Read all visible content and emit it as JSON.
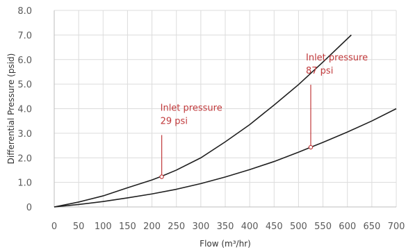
{
  "chart_data": {
    "type": "line",
    "title": "",
    "xlabel": "Flow (m³/hr)",
    "ylabel": "Differential Pressure (psid)",
    "xlim": [
      0,
      700
    ],
    "ylim": [
      0,
      8
    ],
    "x_ticks": [
      "0",
      "50",
      "100",
      "150",
      "200",
      "250",
      "300",
      "350",
      "400",
      "450",
      "500",
      "550",
      "600",
      "650",
      "700"
    ],
    "y_ticks": [
      "0",
      "1.0",
      "2.0",
      "3.0",
      "4.0",
      "5.0",
      "6.0",
      "7.0",
      "8.0"
    ],
    "grid": true,
    "series": [
      {
        "x": [
          0,
          50,
          100,
          150,
          200,
          220,
          250,
          300,
          350,
          400,
          450,
          500,
          550,
          608
        ],
        "y": [
          0,
          0.2,
          0.45,
          0.78,
          1.1,
          1.25,
          1.5,
          2.0,
          2.65,
          3.35,
          4.15,
          4.98,
          5.9,
          7.0
        ]
      },
      {
        "x": [
          0,
          50,
          100,
          150,
          200,
          250,
          300,
          350,
          400,
          450,
          500,
          525,
          550,
          600,
          650,
          700
        ],
        "y": [
          0,
          0.1,
          0.22,
          0.37,
          0.53,
          0.72,
          0.95,
          1.22,
          1.52,
          1.85,
          2.23,
          2.43,
          2.63,
          3.05,
          3.5,
          4.0
        ]
      }
    ],
    "annotations": [
      {
        "text_line1": "Inlet pressure",
        "text_line2": "29 psi",
        "point": [
          220,
          1.23
        ]
      },
      {
        "text_line1": "Inlet pressure",
        "text_line2": "87 psi",
        "point": [
          525,
          2.43
        ]
      }
    ],
    "colors": {
      "curve": "#1f1f1f",
      "annotation": "#c0393b",
      "grid": "#dcdcdc"
    }
  }
}
